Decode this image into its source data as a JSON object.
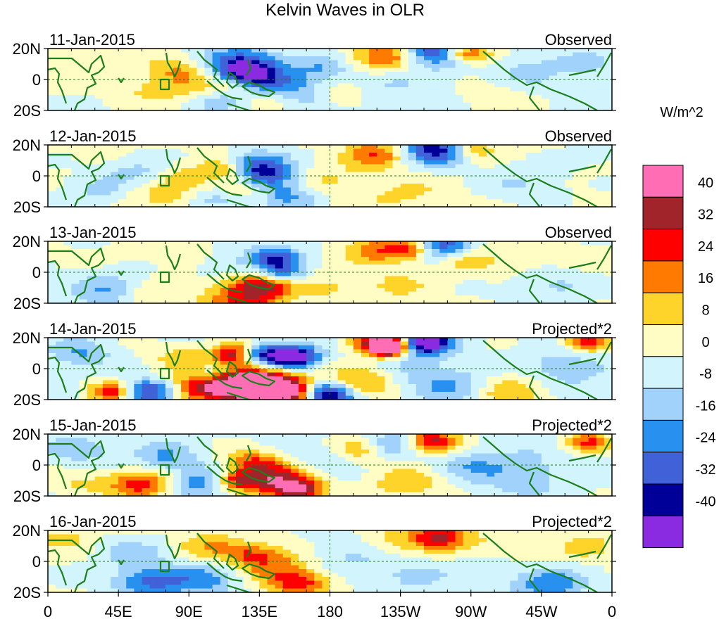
{
  "chart_data": {
    "type": "heatmap",
    "title": "Kelvin Waves in OLR",
    "units_label": "W/m^2",
    "x_ticks": [
      "0",
      "45E",
      "90E",
      "135E",
      "180",
      "135W",
      "90W",
      "45W",
      "0"
    ],
    "x_tick_values": [
      0,
      45,
      90,
      135,
      180,
      225,
      270,
      315,
      360
    ],
    "y_ticks": [
      "20N",
      "0",
      "20S"
    ],
    "y_tick_values": [
      20,
      0,
      -20
    ],
    "xlim": [
      0,
      360
    ],
    "ylim": [
      -20,
      20
    ],
    "colorbar": {
      "labels": [
        "40",
        "32",
        "24",
        "16",
        "8",
        "0",
        "-8",
        "-16",
        "-24",
        "-32",
        "-40"
      ],
      "levels": [
        40,
        32,
        24,
        16,
        8,
        0,
        -8,
        -16,
        -24,
        -32,
        -40
      ],
      "colors": [
        "#ff6eb4",
        "#a0242a",
        "#ff0000",
        "#ff7a00",
        "#ffd42a",
        "#fffcc4",
        "#d2f4fc",
        "#a0d2fc",
        "#2891f0",
        "#4161d8",
        "#000098",
        "#8a2be2"
      ]
    },
    "panels": [
      {
        "date": "11-Jan-2015",
        "kind": "Observed",
        "blobs": [
          [
            122,
            10,
            18,
            -0.55
          ],
          [
            128,
            4,
            14,
            -0.45
          ],
          [
            148,
            -8,
            22,
            -0.45
          ],
          [
            108,
            -12,
            14,
            -0.35
          ],
          [
            176,
            8,
            12,
            -0.25
          ],
          [
            218,
            15,
            16,
            0.55
          ],
          [
            246,
            19,
            16,
            -0.75
          ],
          [
            262,
            18,
            10,
            0.45
          ],
          [
            272,
            16,
            10,
            0.35
          ],
          [
            86,
            5,
            16,
            0.35
          ],
          [
            118,
            -5,
            10,
            0.3
          ],
          [
            140,
            -14,
            14,
            0.4
          ],
          [
            100,
            -8,
            14,
            0.3
          ],
          [
            185,
            -10,
            12,
            0.25
          ],
          [
            310,
            5,
            20,
            -0.2
          ],
          [
            30,
            10,
            20,
            0.15
          ],
          [
            65,
            -8,
            14,
            0.15
          ],
          [
            345,
            10,
            12,
            -0.2
          ],
          [
            225,
            -3,
            24,
            -0.15
          ],
          [
            285,
            -10,
            18,
            0.12
          ]
        ]
      },
      {
        "date": "12-Jan-2015",
        "kind": "Observed",
        "blobs": [
          [
            135,
            7,
            14,
            -0.6
          ],
          [
            138,
            -2,
            12,
            -0.45
          ],
          [
            112,
            5,
            10,
            0.3
          ],
          [
            126,
            -8,
            14,
            0.45
          ],
          [
            110,
            -14,
            14,
            -0.35
          ],
          [
            150,
            -13,
            16,
            -0.4
          ],
          [
            210,
            14,
            14,
            0.45
          ],
          [
            248,
            17,
            16,
            -0.75
          ],
          [
            270,
            17,
            10,
            0.4
          ],
          [
            60,
            3,
            16,
            -0.25
          ],
          [
            85,
            0,
            14,
            0.2
          ],
          [
            180,
            -3,
            14,
            0.15
          ],
          [
            30,
            -10,
            16,
            -0.2
          ],
          [
            305,
            -5,
            18,
            -0.2
          ],
          [
            350,
            15,
            10,
            -0.2
          ],
          [
            225,
            -12,
            20,
            0.15
          ],
          [
            75,
            -13,
            18,
            0.2
          ]
        ]
      },
      {
        "date": "13-Jan-2015",
        "kind": "Observed",
        "blobs": [
          [
            145,
            10,
            12,
            -0.6
          ],
          [
            150,
            0,
            10,
            -0.5
          ],
          [
            126,
            -15,
            18,
            0.55
          ],
          [
            140,
            -8,
            12,
            0.35
          ],
          [
            210,
            14,
            14,
            0.4
          ],
          [
            232,
            15,
            10,
            0.55
          ],
          [
            250,
            17,
            14,
            -0.6
          ],
          [
            265,
            8,
            10,
            0.25
          ],
          [
            110,
            5,
            14,
            -0.2
          ],
          [
            40,
            -12,
            18,
            -0.35
          ],
          [
            60,
            -14,
            14,
            0.2
          ],
          [
            178,
            -10,
            12,
            0.2
          ],
          [
            300,
            10,
            20,
            0.15
          ],
          [
            320,
            -8,
            18,
            -0.2
          ],
          [
            225,
            -8,
            18,
            0.15
          ],
          [
            85,
            12,
            16,
            0.15
          ]
        ]
      },
      {
        "date": "14-Jan-2015",
        "kind": "Projected*2",
        "blobs": [
          [
            120,
            10,
            10,
            0.8
          ],
          [
            133,
            10,
            10,
            -0.6
          ],
          [
            155,
            7,
            12,
            -1.0
          ],
          [
            122,
            -10,
            18,
            0.8
          ],
          [
            140,
            -12,
            16,
            0.9
          ],
          [
            155,
            -16,
            12,
            0.7
          ],
          [
            178,
            -17,
            12,
            -0.95
          ],
          [
            214,
            17,
            12,
            0.9
          ],
          [
            218,
            13,
            8,
            1.0
          ],
          [
            240,
            17,
            12,
            -1.0
          ],
          [
            40,
            -15,
            10,
            0.6
          ],
          [
            65,
            -15,
            12,
            -0.7
          ],
          [
            95,
            -13,
            14,
            0.5
          ],
          [
            345,
            17,
            10,
            0.6
          ],
          [
            20,
            10,
            14,
            -0.3
          ],
          [
            200,
            -7,
            16,
            0.4
          ],
          [
            260,
            -12,
            16,
            -0.3
          ],
          [
            295,
            -15,
            18,
            0.3
          ],
          [
            330,
            0,
            20,
            -0.25
          ],
          [
            85,
            7,
            14,
            0.25
          ],
          [
            105,
            -3,
            10,
            -0.3
          ],
          [
            230,
            0,
            20,
            -0.2
          ]
        ]
      },
      {
        "date": "15-Jan-2015",
        "kind": "Projected*2",
        "blobs": [
          [
            145,
            -10,
            18,
            0.7
          ],
          [
            160,
            -16,
            10,
            0.65
          ],
          [
            130,
            2,
            12,
            0.4
          ],
          [
            120,
            -10,
            10,
            0.5
          ],
          [
            220,
            13,
            14,
            -0.4
          ],
          [
            245,
            15,
            12,
            0.75
          ],
          [
            200,
            10,
            14,
            0.35
          ],
          [
            60,
            -13,
            14,
            0.6
          ],
          [
            100,
            -12,
            16,
            -0.4
          ],
          [
            75,
            5,
            14,
            -0.3
          ],
          [
            175,
            3,
            16,
            -0.2
          ],
          [
            230,
            -12,
            18,
            0.3
          ],
          [
            345,
            15,
            10,
            0.5
          ],
          [
            20,
            10,
            16,
            -0.25
          ],
          [
            300,
            -5,
            22,
            -0.25
          ],
          [
            20,
            -10,
            16,
            0.2
          ],
          [
            265,
            0,
            16,
            -0.2
          ]
        ]
      },
      {
        "date": "16-Jan-2015",
        "kind": "Projected*2",
        "blobs": [
          [
            160,
            -14,
            14,
            0.55
          ],
          [
            140,
            0,
            16,
            0.4
          ],
          [
            105,
            10,
            14,
            0.3
          ],
          [
            128,
            5,
            10,
            0.25
          ],
          [
            65,
            -13,
            16,
            -0.5
          ],
          [
            100,
            -12,
            16,
            -0.35
          ],
          [
            55,
            5,
            14,
            -0.25
          ],
          [
            195,
            5,
            20,
            -0.2
          ],
          [
            250,
            16,
            12,
            0.65
          ],
          [
            220,
            12,
            16,
            0.25
          ],
          [
            230,
            -10,
            18,
            -0.2
          ],
          [
            320,
            -15,
            16,
            -0.45
          ],
          [
            345,
            10,
            12,
            0.25
          ],
          [
            10,
            15,
            10,
            0.25
          ],
          [
            290,
            10,
            20,
            0.15
          ],
          [
            280,
            -5,
            16,
            -0.15
          ]
        ]
      }
    ]
  }
}
